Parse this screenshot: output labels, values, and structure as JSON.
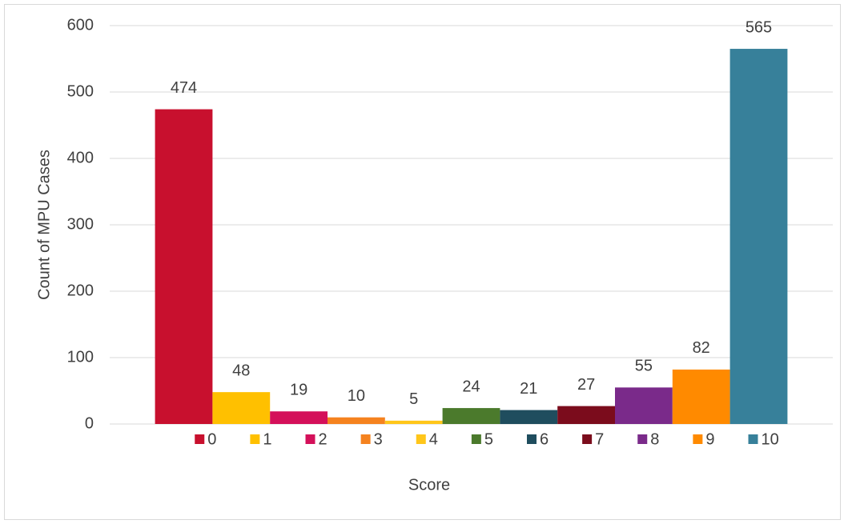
{
  "chart_data": {
    "type": "bar",
    "x_label": "Score",
    "y_label": "Count of MPU Cases",
    "categories": [
      null
    ],
    "series": [
      {
        "name": "0",
        "color": "#c8102e",
        "values": [
          474
        ]
      },
      {
        "name": "1",
        "color": "#ffc000",
        "values": [
          48
        ]
      },
      {
        "name": "2",
        "color": "#d4105a",
        "values": [
          19
        ]
      },
      {
        "name": "3",
        "color": "#f5821f",
        "values": [
          10
        ]
      },
      {
        "name": "4",
        "color": "#ffc61a",
        "values": [
          5
        ]
      },
      {
        "name": "5",
        "color": "#4b7a2c",
        "values": [
          24
        ]
      },
      {
        "name": "6",
        "color": "#1f4d5e",
        "values": [
          21
        ]
      },
      {
        "name": "7",
        "color": "#7b0c1c",
        "values": [
          27
        ]
      },
      {
        "name": "8",
        "color": "#7a2a8a",
        "values": [
          55
        ]
      },
      {
        "name": "9",
        "color": "#ff8a00",
        "values": [
          82
        ]
      },
      {
        "name": "10",
        "color": "#37809a",
        "values": [
          565
        ]
      }
    ],
    "ylim": [
      0,
      600
    ],
    "yticks": [
      0,
      100,
      200,
      300,
      400,
      500,
      600
    ],
    "grid": true,
    "legend": "bottom"
  }
}
